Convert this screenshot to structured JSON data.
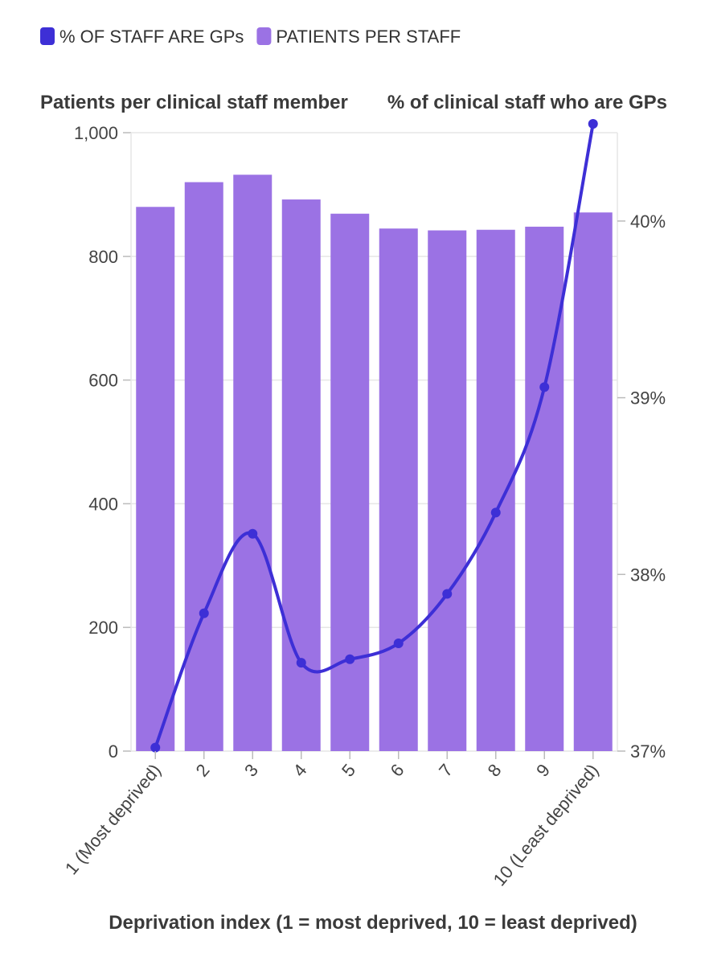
{
  "legend": [
    {
      "label": "% OF STAFF ARE GPs",
      "color": "#3d2fd6"
    },
    {
      "label": "PATIENTS PER STAFF",
      "color": "#9b72e4"
    }
  ],
  "colors": {
    "bar": "#9b72e4",
    "line": "#3d2fd6",
    "grid": "#e6e6e6"
  },
  "chart_data": {
    "type": "bar",
    "categories": [
      "1 (Most deprived)",
      "2",
      "3",
      "4",
      "5",
      "6",
      "7",
      "8",
      "9",
      "10 (Least deprived)"
    ],
    "series": [
      {
        "name": "PATIENTS PER STAFF",
        "type": "bar",
        "axis": "left",
        "values": [
          880,
          920,
          932,
          892,
          869,
          845,
          842,
          843,
          848,
          871
        ]
      },
      {
        "name": "% OF STAFF ARE GPs",
        "type": "line",
        "axis": "right",
        "values": [
          37.02,
          37.78,
          38.23,
          37.5,
          37.52,
          37.61,
          37.89,
          38.35,
          39.06,
          40.55
        ]
      }
    ],
    "ylabel_left": "Patients per clinical staff member",
    "ylabel_right": "% of clinical staff who are GPs",
    "xlabel": "Deprivation index (1 = most deprived, 10 = least deprived)",
    "ylim_left": [
      0,
      1000
    ],
    "yticks_left": [
      "0",
      "200",
      "400",
      "600",
      "800",
      "1,000"
    ],
    "ylim_right": [
      37,
      40.5
    ],
    "yticks_right": [
      "37%",
      "38%",
      "39%",
      "40%"
    ]
  }
}
